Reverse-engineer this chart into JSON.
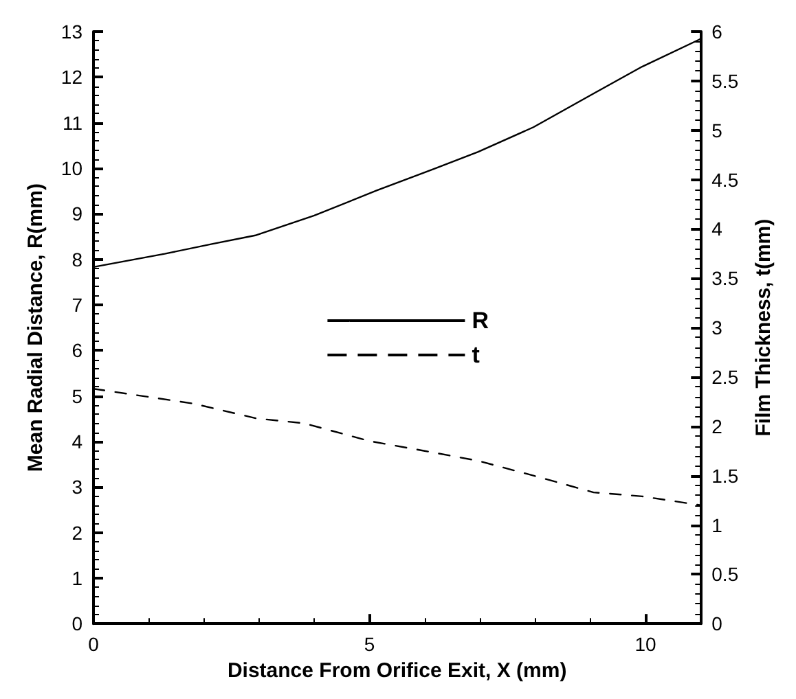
{
  "chart_data": {
    "type": "line",
    "xlabel": "Distance From Orifice Exit, X (mm)",
    "ylabel": "Mean Radial Distance, R(mm)",
    "y2label": "Film Thickness, t(mm)",
    "xlim": [
      0,
      11
    ],
    "xticks": [
      0,
      5,
      10
    ],
    "ylim": [
      0,
      13
    ],
    "yticks": [
      0,
      1,
      2,
      3,
      4,
      5,
      6,
      7,
      8,
      9,
      10,
      11,
      12,
      13
    ],
    "y2lim": [
      0,
      6
    ],
    "y2ticks": [
      0,
      0.5,
      1,
      1.5,
      2,
      2.5,
      3,
      3.5,
      4,
      4.5,
      5,
      5.5,
      6
    ],
    "grid": false,
    "legend": "center",
    "marker": "none",
    "series": [
      {
        "name": "R",
        "color": "#000000",
        "line_style": "solid",
        "x": [
          0,
          1.29,
          2.16,
          2.95,
          4.0,
          5.13,
          6.18,
          6.97,
          7.97,
          9.06,
          9.94,
          11.0
        ],
        "values": [
          7.83,
          8.12,
          8.34,
          8.53,
          8.96,
          9.51,
          9.99,
          10.36,
          10.9,
          11.64,
          12.23,
          12.84
        ]
      },
      {
        "name": "t",
        "color": "#000000",
        "line_style": "dashed",
        "axis": "y2",
        "x": [
          0,
          1.81,
          2.95,
          3.82,
          5.0,
          6.0,
          6.97,
          7.97,
          9.06,
          9.94,
          11.0
        ],
        "values": [
          2.38,
          2.23,
          2.08,
          2.03,
          1.85,
          1.75,
          1.65,
          1.5,
          1.33,
          1.29,
          1.2
        ]
      }
    ]
  }
}
